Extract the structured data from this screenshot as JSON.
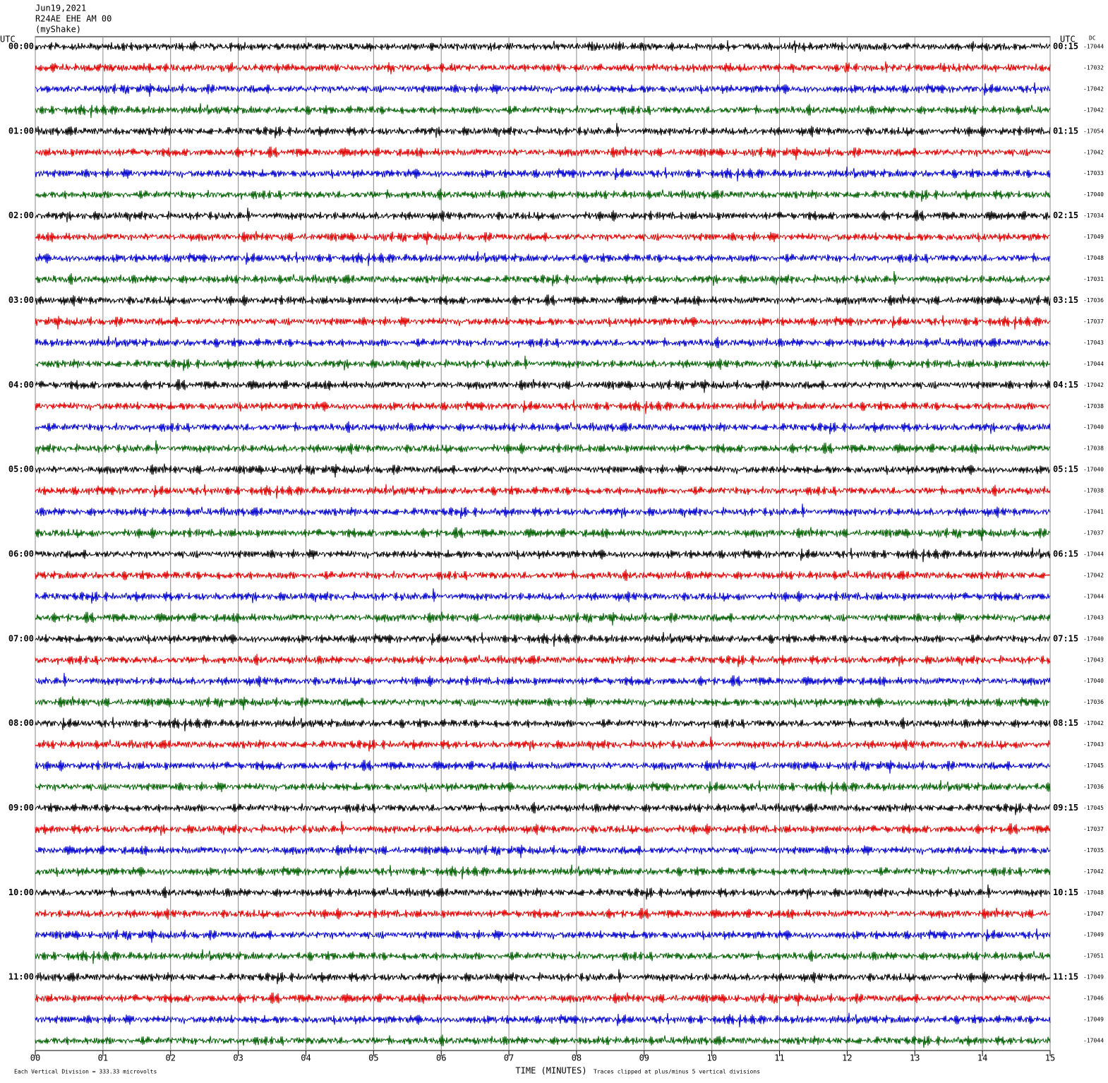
{
  "chart_data": {
    "type": "helicorder",
    "title_lines": [
      "Jun19,2021",
      "R24AE EHE AM 00",
      "(myShake)"
    ],
    "left_axis_label": "UTC",
    "right_axis_label": "UTC",
    "dc_label": "DC",
    "xlabel": "TIME (MINUTES)",
    "scale_note": "Each Vertical Division =  333.33 microvolts",
    "clip_note": "Traces clipped at plus/minus 5 vertical divisions",
    "xlim": [
      0,
      15
    ],
    "xticks": [
      {
        "value": 0,
        "label": "00"
      },
      {
        "value": 1,
        "label": "01"
      },
      {
        "value": 2,
        "label": "02"
      },
      {
        "value": 3,
        "label": "03"
      },
      {
        "value": 4,
        "label": "04"
      },
      {
        "value": 5,
        "label": "05"
      },
      {
        "value": 6,
        "label": "06"
      },
      {
        "value": 7,
        "label": "07"
      },
      {
        "value": 8,
        "label": "08"
      },
      {
        "value": 9,
        "label": "09"
      },
      {
        "value": 10,
        "label": "10"
      },
      {
        "value": 11,
        "label": "11"
      },
      {
        "value": 12,
        "label": "12"
      },
      {
        "value": 13,
        "label": "13"
      },
      {
        "value": 14,
        "label": "14"
      },
      {
        "value": 15,
        "label": "15"
      }
    ],
    "grid": true,
    "row_colors": [
      "#000000",
      "#e00000",
      "#0000d0",
      "#006000"
    ],
    "left_time_labels": [
      "00:00",
      "01:00",
      "02:00",
      "03:00",
      "04:00",
      "05:00",
      "06:00",
      "07:00",
      "08:00",
      "09:00",
      "10:00",
      "11:00"
    ],
    "right_time_labels": [
      "00:15",
      "01:15",
      "02:15",
      "03:15",
      "04:15",
      "05:15",
      "06:15",
      "07:15",
      "08:15",
      "09:15",
      "10:15",
      "11:15"
    ],
    "dc_offsets": [
      -17044,
      -17032,
      -17042,
      -17042,
      -17054,
      -17042,
      -17033,
      -17040,
      -17034,
      -17049,
      -17048,
      -17031,
      -17036,
      -17037,
      -17043,
      -17044,
      -17042,
      -17038,
      -17040,
      -17038,
      -17040,
      -17038,
      -17041,
      -17037,
      -17044,
      -17042,
      -17044,
      -17043,
      -17040,
      -17043,
      -17040,
      -17036,
      -17042,
      -17043,
      -17045,
      -17036,
      -17045,
      -17037,
      -17035,
      -17042,
      -17048,
      -17047,
      -17049,
      -17051,
      -17049,
      -17046,
      -17049,
      -17044
    ]
  }
}
